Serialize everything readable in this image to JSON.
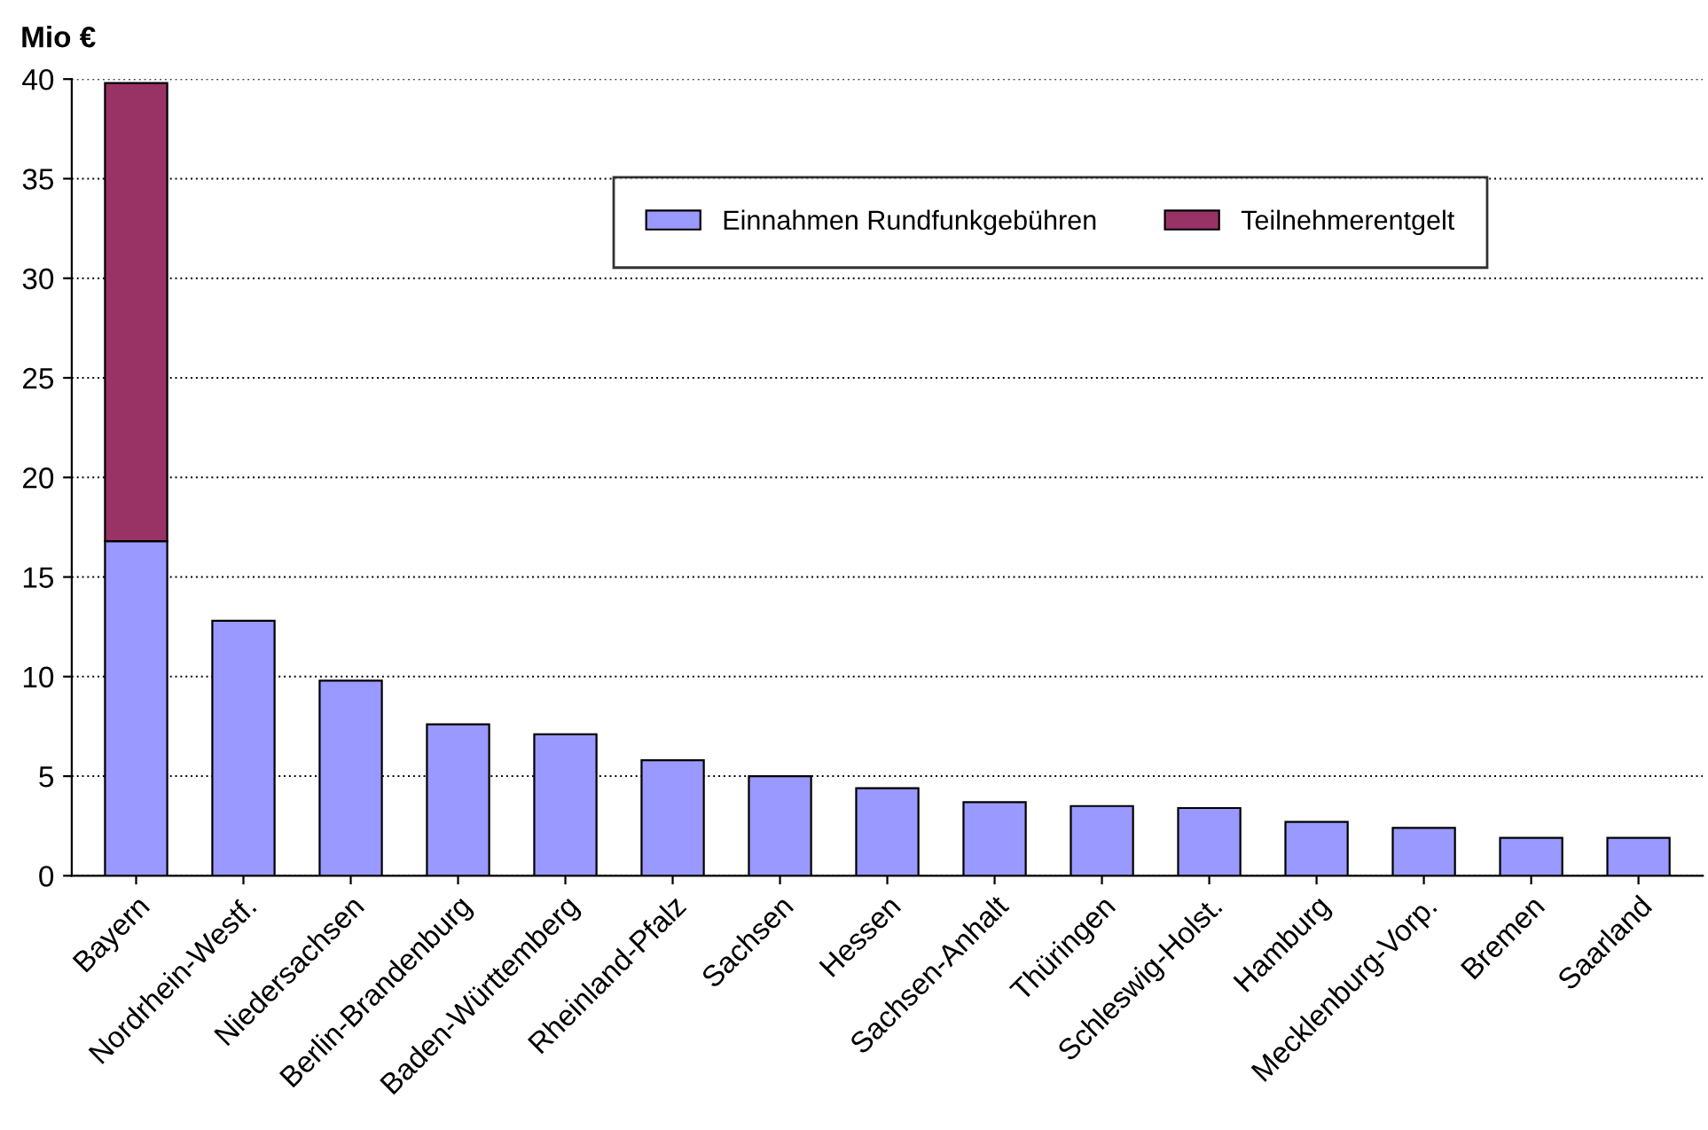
{
  "chart_data": {
    "type": "bar",
    "ylabel": "Mio €",
    "stacked": true,
    "categories": [
      "Bayern",
      "Nordrhein-Westf.",
      "Niedersachsen",
      "Berlin-Brandenburg",
      "Baden-Württemberg",
      "Rheinland-Pfalz",
      "Sachsen",
      "Hessen",
      "Sachsen-Anhalt",
      "Thüringen",
      "Schleswig-Holst.",
      "Hamburg",
      "Mecklenburg-Vorp.",
      "Bremen",
      "Saarland"
    ],
    "series": [
      {
        "name": "Einnahmen Rundfunkgebühren",
        "color": "#9999ff",
        "values": [
          16.8,
          12.8,
          9.8,
          7.6,
          7.1,
          5.8,
          5.0,
          4.4,
          3.7,
          3.5,
          3.4,
          2.7,
          2.4,
          1.9,
          1.9
        ]
      },
      {
        "name": "Teilnehmerentgelt",
        "color": "#993366",
        "values": [
          23.0,
          null,
          null,
          null,
          null,
          null,
          null,
          null,
          null,
          null,
          null,
          null,
          null,
          null,
          null
        ]
      }
    ],
    "ylim": [
      0,
      40
    ],
    "yticks": [
      0,
      5,
      10,
      15,
      20,
      25,
      30,
      35,
      40
    ],
    "grid": "y",
    "legend": "top"
  }
}
